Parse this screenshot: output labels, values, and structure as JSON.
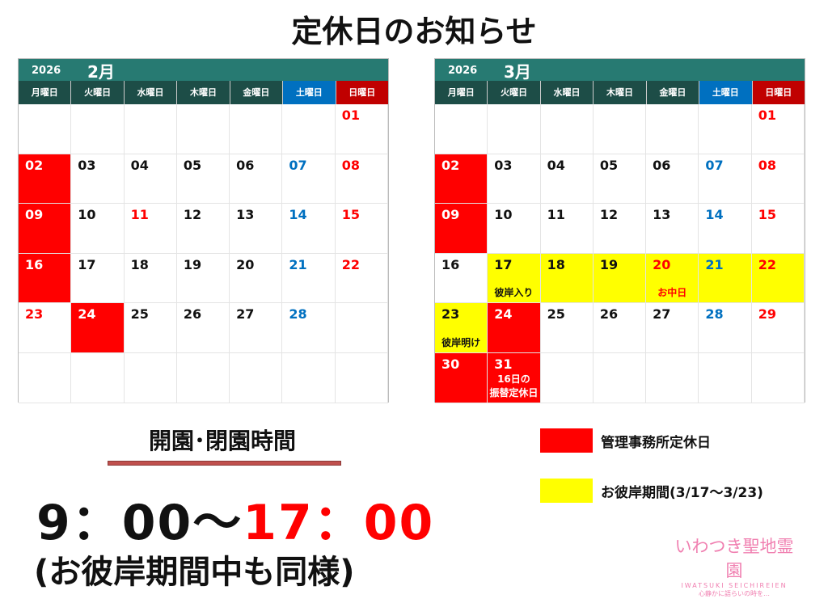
{
  "title": "定休日のお知らせ",
  "weekdays": [
    "月曜日",
    "火曜日",
    "水曜日",
    "木曜日",
    "金曜日",
    "土曜日",
    "日曜日"
  ],
  "colors": {
    "red": "#ff0000",
    "blue": "#0070c0",
    "yellow": "#ffff00",
    "black": "#111111",
    "white": "#ffffff"
  },
  "calendars": [
    {
      "year": "2026",
      "month": "2月",
      "cells": [
        [
          "",
          "k"
        ],
        [
          "",
          "k"
        ],
        [
          "",
          "k"
        ],
        [
          "",
          "k"
        ],
        [
          "",
          "k"
        ],
        [
          "",
          "k"
        ],
        [
          "01",
          "r"
        ],
        [
          "02",
          "w",
          "red"
        ],
        [
          "03",
          "k"
        ],
        [
          "04",
          "k"
        ],
        [
          "05",
          "k"
        ],
        [
          "06",
          "k"
        ],
        [
          "07",
          "b"
        ],
        [
          "08",
          "r"
        ],
        [
          "09",
          "w",
          "red"
        ],
        [
          "10",
          "k"
        ],
        [
          "11",
          "r"
        ],
        [
          "12",
          "k"
        ],
        [
          "13",
          "k"
        ],
        [
          "14",
          "b"
        ],
        [
          "15",
          "r"
        ],
        [
          "16",
          "w",
          "red"
        ],
        [
          "17",
          "k"
        ],
        [
          "18",
          "k"
        ],
        [
          "19",
          "k"
        ],
        [
          "20",
          "k"
        ],
        [
          "21",
          "b"
        ],
        [
          "22",
          "r"
        ],
        [
          "23",
          "r"
        ],
        [
          "24",
          "w",
          "red"
        ],
        [
          "25",
          "k"
        ],
        [
          "26",
          "k"
        ],
        [
          "27",
          "k"
        ],
        [
          "28",
          "b"
        ],
        [
          "",
          "k"
        ],
        [
          "",
          "k"
        ],
        [
          "",
          "k"
        ],
        [
          "",
          "k"
        ],
        [
          "",
          "k"
        ],
        [
          "",
          "k"
        ],
        [
          "",
          "k"
        ],
        [
          "",
          "k"
        ]
      ]
    },
    {
      "year": "2026",
      "month": "3月",
      "cells": [
        [
          "",
          "k"
        ],
        [
          "",
          "k"
        ],
        [
          "",
          "k"
        ],
        [
          "",
          "k"
        ],
        [
          "",
          "k"
        ],
        [
          "",
          "k"
        ],
        [
          "01",
          "r"
        ],
        [
          "02",
          "w",
          "red"
        ],
        [
          "03",
          "k"
        ],
        [
          "04",
          "k"
        ],
        [
          "05",
          "k"
        ],
        [
          "06",
          "k"
        ],
        [
          "07",
          "b"
        ],
        [
          "08",
          "r"
        ],
        [
          "09",
          "w",
          "red"
        ],
        [
          "10",
          "k"
        ],
        [
          "11",
          "k"
        ],
        [
          "12",
          "k"
        ],
        [
          "13",
          "k"
        ],
        [
          "14",
          "b"
        ],
        [
          "15",
          "r"
        ],
        [
          "16",
          "k"
        ],
        [
          "17",
          "k",
          "yellow",
          "彼岸入り",
          "k"
        ],
        [
          "18",
          "k",
          "yellow"
        ],
        [
          "19",
          "k",
          "yellow"
        ],
        [
          "20",
          "r",
          "yellow",
          "お中日",
          "r"
        ],
        [
          "21",
          "b",
          "yellow"
        ],
        [
          "22",
          "r",
          "yellow"
        ],
        [
          "23",
          "k",
          "yellow",
          "彼岸明け",
          "k"
        ],
        [
          "24",
          "w",
          "red"
        ],
        [
          "25",
          "k"
        ],
        [
          "26",
          "k"
        ],
        [
          "27",
          "k"
        ],
        [
          "28",
          "b"
        ],
        [
          "29",
          "r"
        ],
        [
          "30",
          "w",
          "red"
        ],
        [
          "31",
          "w",
          "red",
          "16日の\n振替定休日",
          "w"
        ],
        [
          "",
          "k"
        ],
        [
          "",
          "k"
        ],
        [
          "",
          "k"
        ],
        [
          "",
          "k"
        ],
        [
          "",
          "k"
        ]
      ]
    }
  ],
  "hours": {
    "heading": "開園･閉園時間",
    "open": "9：00～",
    "close": "17：00",
    "note": "(お彼岸期間中も同様)"
  },
  "legend": [
    {
      "label": "管理事務所定休日",
      "color": "#ff0000"
    },
    {
      "label": "お彼岸期間(3/17～3/23)",
      "color": "#ffff00"
    }
  ],
  "logo": {
    "name": "いわつき聖地霊園",
    "roman": "IWATSUKI SEICHIREIEN",
    "tagline": "心静かに語らいの時を…"
  }
}
